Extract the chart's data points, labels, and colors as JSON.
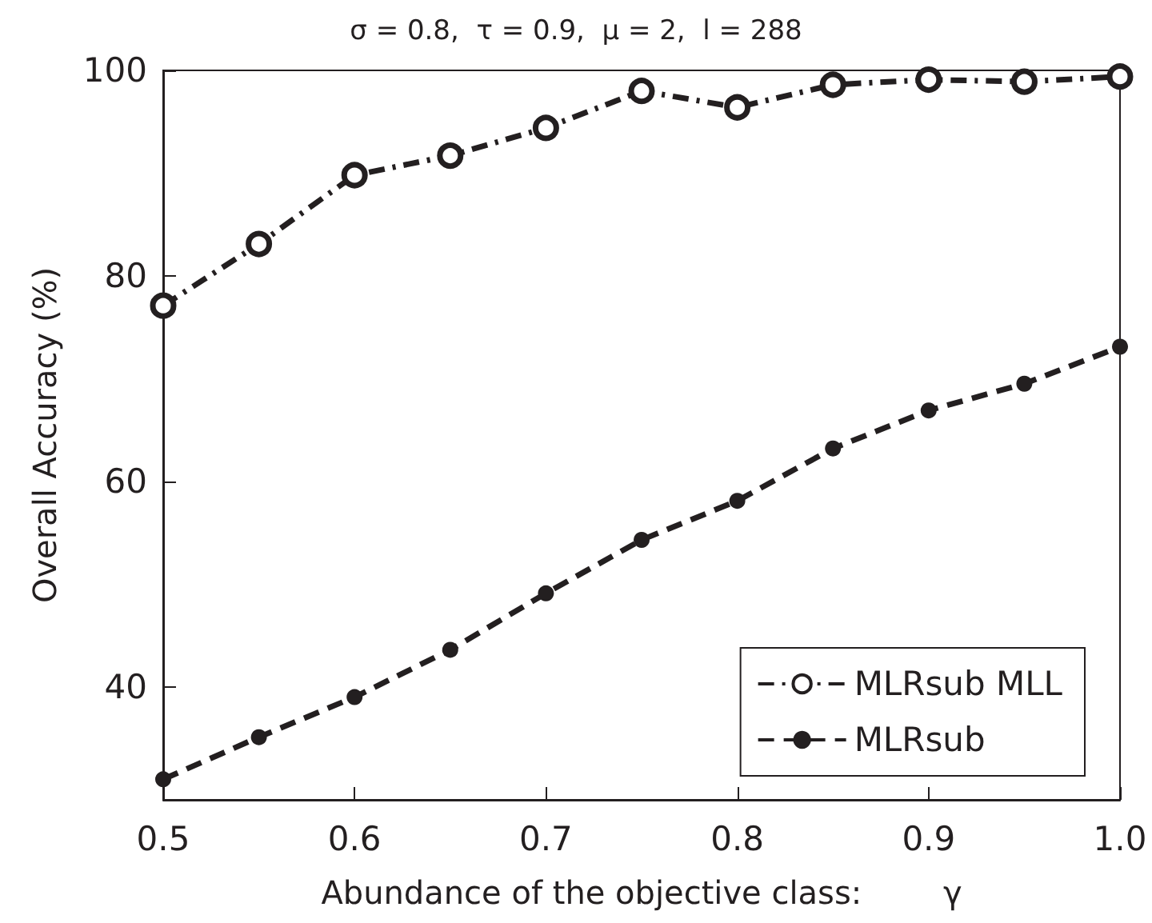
{
  "chart_data": {
    "type": "line",
    "title": "σ = 0.8,  τ = 0.9,  μ = 2,  l = 288",
    "xlabel": "Abundance of the objective class:        γ",
    "ylabel": "Overall Accuracy (%)",
    "x": [
      0.5,
      0.55,
      0.6,
      0.65,
      0.7,
      0.75,
      0.8,
      0.85,
      0.9,
      0.95,
      1.0
    ],
    "series": [
      {
        "name": "MLRsub MLL",
        "color": "#231f20",
        "line_style": "dashdot",
        "values": [
          77.1,
          83.1,
          89.8,
          91.7,
          94.4,
          98.0,
          96.4,
          98.6,
          99.1,
          98.9,
          99.4
        ]
      },
      {
        "name": "MLRsub",
        "color": "#231f20",
        "line_style": "dashed",
        "values": [
          31.0,
          35.1,
          39.0,
          43.6,
          49.1,
          54.3,
          58.1,
          63.2,
          66.9,
          69.5,
          73.1
        ]
      }
    ],
    "xlim": [
      0.5,
      1.0
    ],
    "xticks": [
      0.5,
      0.6,
      0.7,
      0.8,
      0.9,
      {
        "value": 1.0,
        "label": "1.0"
      }
    ],
    "ylim": [
      29,
      100
    ],
    "yticks": [
      40,
      60,
      80,
      100
    ],
    "marker": "circle",
    "legend": "bottom right",
    "grid": false
  }
}
